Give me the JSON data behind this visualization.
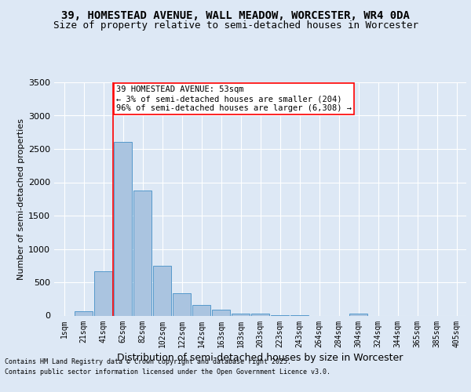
{
  "title": "39, HOMESTEAD AVENUE, WALL MEADOW, WORCESTER, WR4 0DA",
  "subtitle": "Size of property relative to semi-detached houses in Worcester",
  "xlabel": "Distribution of semi-detached houses by size in Worcester",
  "ylabel": "Number of semi-detached properties",
  "categories": [
    "1sqm",
    "21sqm",
    "41sqm",
    "62sqm",
    "82sqm",
    "102sqm",
    "122sqm",
    "142sqm",
    "163sqm",
    "183sqm",
    "203sqm",
    "223sqm",
    "243sqm",
    "264sqm",
    "284sqm",
    "304sqm",
    "324sqm",
    "344sqm",
    "365sqm",
    "385sqm",
    "405sqm"
  ],
  "values": [
    0,
    60,
    670,
    2600,
    1880,
    750,
    340,
    155,
    90,
    35,
    25,
    10,
    5,
    0,
    0,
    25,
    0,
    0,
    0,
    0,
    0
  ],
  "bar_color": "#aac4e0",
  "bar_edge_color": "#5599cc",
  "red_line_x": 2.5,
  "property_label": "39 HOMESTEAD AVENUE: 53sqm",
  "annotation_line1": "← 3% of semi-detached houses are smaller (204)",
  "annotation_line2": "96% of semi-detached houses are larger (6,308) →",
  "ylim": [
    0,
    3500
  ],
  "yticks": [
    0,
    500,
    1000,
    1500,
    2000,
    2500,
    3000,
    3500
  ],
  "footnote1": "Contains HM Land Registry data © Crown copyright and database right 2025.",
  "footnote2": "Contains public sector information licensed under the Open Government Licence v3.0.",
  "background_color": "#dde8f5",
  "plot_background": "#dde8f5",
  "grid_color": "#ffffff",
  "title_fontsize": 10,
  "subtitle_fontsize": 9,
  "ylabel_fontsize": 8,
  "xlabel_fontsize": 9,
  "tick_fontsize": 7,
  "annot_fontsize": 7.5,
  "footnote_fontsize": 6
}
